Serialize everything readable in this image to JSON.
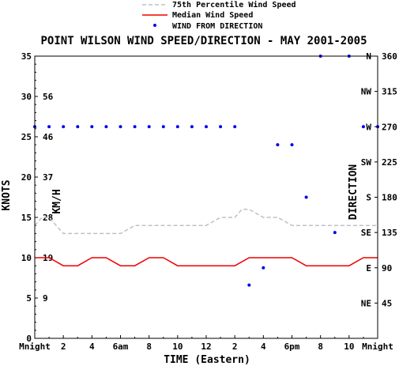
{
  "chart_data": {
    "type": "line",
    "title": "POINT WILSON WIND SPEED/DIRECTION - MAY 2001-2005",
    "xlabel": "TIME (Eastern)",
    "ylabel": "KNOTS",
    "y2label": "KM/H",
    "y3label": "DIRECTION",
    "x_tick_labels": [
      "Mnight",
      "2",
      "4",
      "6am",
      "8",
      "10",
      "12",
      "2",
      "4",
      "6pm",
      "8",
      "10",
      "Mnight"
    ],
    "x_tick_hours": [
      0,
      2,
      4,
      6,
      8,
      10,
      12,
      14,
      16,
      18,
      20,
      22,
      24
    ],
    "xlim": [
      0,
      24
    ],
    "ylim": [
      0,
      35
    ],
    "knots_ticks": [
      "0",
      "5",
      "10",
      "15",
      "20",
      "25",
      "30",
      "35"
    ],
    "kmh_ticks": [
      {
        "at": 5,
        "label": "9"
      },
      {
        "at": 10,
        "label": "19"
      },
      {
        "at": 15,
        "label": "28"
      },
      {
        "at": 20,
        "label": "37"
      },
      {
        "at": 25,
        "label": "46"
      },
      {
        "at": 30,
        "label": "56"
      }
    ],
    "direction_lim": [
      0,
      360
    ],
    "direction_ticks": [
      {
        "deg": 360,
        "value": "360",
        "compass": "N"
      },
      {
        "deg": 315,
        "value": "315",
        "compass": "NW"
      },
      {
        "deg": 270,
        "value": "270",
        "compass": "W"
      },
      {
        "deg": 225,
        "value": "225",
        "compass": "SW"
      },
      {
        "deg": 180,
        "value": "180",
        "compass": "S"
      },
      {
        "deg": 135,
        "value": "135",
        "compass": "SE"
      },
      {
        "deg": 90,
        "value": "90",
        "compass": "E"
      },
      {
        "deg": 45,
        "value": "45",
        "compass": "NE"
      }
    ],
    "legend": [
      {
        "label": "75th Percentile Wind Speed",
        "style": "dashed",
        "color": "#c0c0c0"
      },
      {
        "label": "Median Wind Speed",
        "style": "solid",
        "color": "#ee0000"
      },
      {
        "label": "WIND FROM DIRECTION",
        "style": "dot",
        "color": "#0000ee"
      }
    ],
    "legend_position": "top-center",
    "series": [
      {
        "name": "75th Percentile Wind Speed",
        "axis": "knots",
        "x": [
          0,
          0.5,
          1,
          1.5,
          2,
          3,
          4,
          5,
          6,
          7,
          8,
          9,
          10,
          11,
          12,
          13,
          14,
          14.5,
          15,
          16,
          17,
          18,
          19,
          20,
          21,
          22,
          23,
          24
        ],
        "y": [
          14,
          15,
          15,
          14,
          13,
          13,
          13,
          13,
          13,
          14,
          14,
          14,
          14,
          14,
          14,
          15,
          15,
          16,
          16,
          15,
          15,
          14,
          14,
          14,
          14,
          14,
          14,
          14
        ]
      },
      {
        "name": "Median Wind Speed",
        "axis": "knots",
        "x": [
          0,
          1,
          2,
          3,
          4,
          5,
          6,
          7,
          8,
          9,
          10,
          11,
          12,
          13,
          14,
          15,
          16,
          17,
          18,
          19,
          20,
          21,
          22,
          23,
          24
        ],
        "y": [
          10,
          10,
          9,
          9,
          10,
          10,
          9,
          9,
          10,
          10,
          9,
          9,
          9,
          9,
          9,
          10,
          10,
          10,
          10,
          9,
          9,
          9,
          9,
          10,
          10
        ]
      },
      {
        "name": "WIND FROM DIRECTION",
        "axis": "direction",
        "x": [
          0,
          1,
          2,
          3,
          4,
          5,
          6,
          7,
          8,
          9,
          10,
          11,
          12,
          13,
          14,
          15,
          16,
          17,
          18,
          19,
          20,
          21,
          22,
          23,
          24
        ],
        "y": [
          270,
          270,
          270,
          270,
          270,
          270,
          270,
          270,
          270,
          270,
          270,
          270,
          270,
          270,
          270,
          68,
          90,
          247,
          247,
          180,
          360,
          135,
          360,
          270,
          270
        ]
      }
    ],
    "grid": false
  },
  "colors": {
    "background": "#ffffff",
    "axes": "#000000",
    "percentile": "#c0c0c0",
    "median": "#ee0000",
    "direction": "#0000ee"
  }
}
